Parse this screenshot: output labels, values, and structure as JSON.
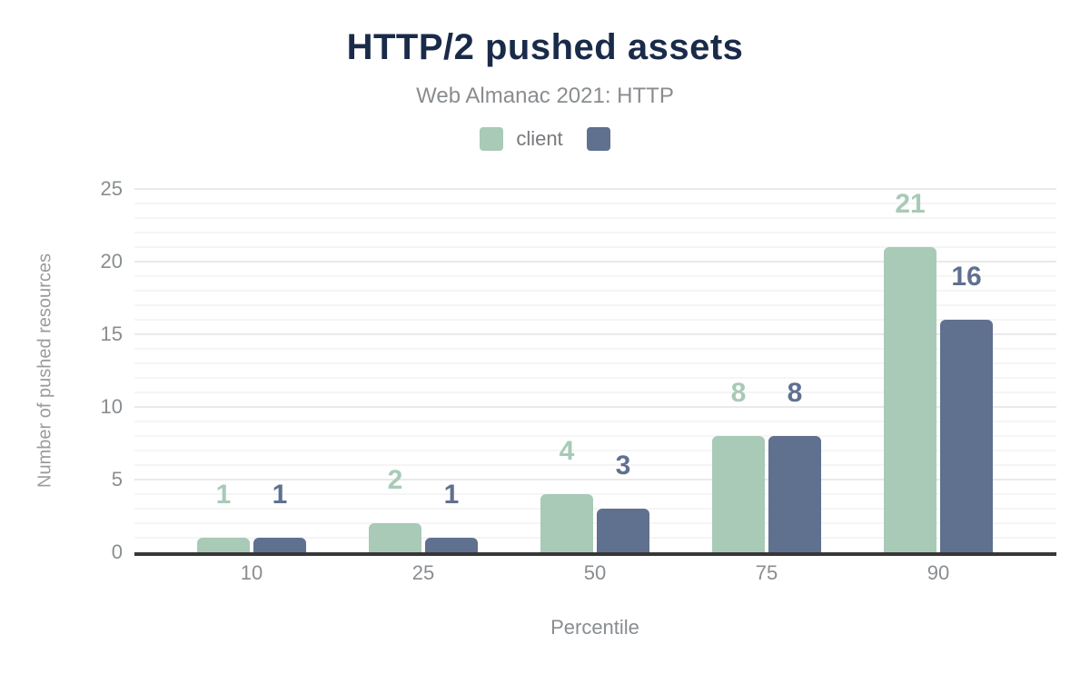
{
  "header": {
    "title": "HTTP/2 pushed assets",
    "subtitle": "Web Almanac 2021: HTTP"
  },
  "colors": {
    "title": "#1a2b49",
    "axis_line": "#373737",
    "text_gray": "#898d90",
    "grid_minor": "#f5f5f5",
    "grid_major": "#eaeaea"
  },
  "chart_data": {
    "type": "bar",
    "title": "HTTP/2 pushed assets",
    "subtitle": "Web Almanac 2021: HTTP",
    "categories": [
      "10",
      "25",
      "50",
      "75",
      "90"
    ],
    "series": [
      {
        "name": "client",
        "color": "#a8cab7",
        "values": [
          1,
          2,
          4,
          8,
          21
        ]
      },
      {
        "name": "",
        "color": "#60708f",
        "values": [
          1,
          1,
          3,
          8,
          16
        ]
      }
    ],
    "xlabel": "Percentile",
    "ylabel": "Number of pushed resources",
    "ylim": [
      0,
      25
    ],
    "yticks": [
      0,
      5,
      10,
      15,
      20,
      25
    ],
    "grid": "horizontal, minor every 1 unit, major every 5 units",
    "legend_position": "top",
    "bar_value_labels": true
  }
}
